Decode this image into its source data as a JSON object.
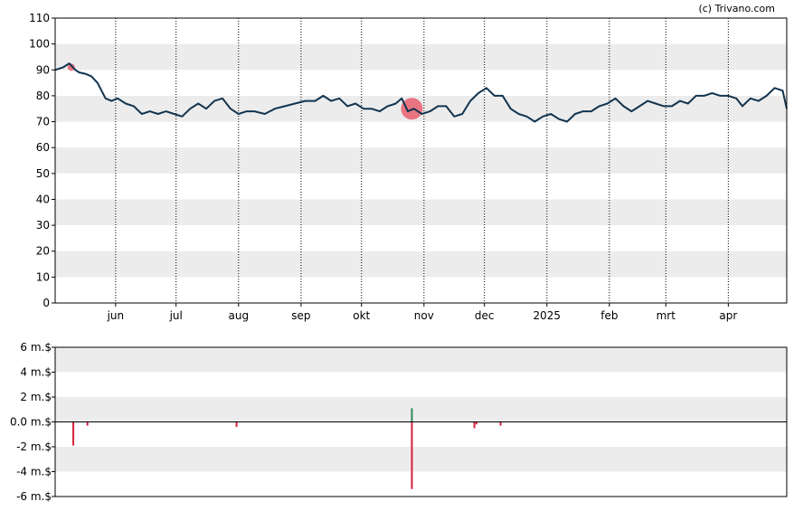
{
  "credit": "(c) Trivano.com",
  "chart_data": [
    {
      "type": "line",
      "title": "",
      "xlabel": "",
      "ylabel": "",
      "ylim": [
        0,
        110
      ],
      "y_ticks": [
        0,
        10,
        20,
        30,
        40,
        50,
        60,
        70,
        80,
        90,
        100,
        110
      ],
      "x_range": [
        "2024-05-02",
        "2025-04-30"
      ],
      "x_ticks": [
        {
          "label": "jun",
          "date": "2024-06-01"
        },
        {
          "label": "jul",
          "date": "2024-07-01"
        },
        {
          "label": "aug",
          "date": "2024-08-01"
        },
        {
          "label": "sep",
          "date": "2024-09-01"
        },
        {
          "label": "okt",
          "date": "2024-10-01"
        },
        {
          "label": "nov",
          "date": "2024-11-01"
        },
        {
          "label": "dec",
          "date": "2024-12-01"
        },
        {
          "label": "2025",
          "date": "2025-01-01"
        },
        {
          "label": "feb",
          "date": "2025-02-01"
        },
        {
          "label": "mrt",
          "date": "2025-03-01"
        },
        {
          "label": "apr",
          "date": "2025-04-01"
        }
      ],
      "grid": "alternating horizontal bands, dotted vertical month lines",
      "line_color": "#12344f",
      "series": [
        {
          "x": [
            "2024-05-02",
            "2024-05-06",
            "2024-05-09",
            "2024-05-12",
            "2024-05-14",
            "2024-05-17",
            "2024-05-20",
            "2024-05-23",
            "2024-05-27",
            "2024-05-30",
            "2024-06-02",
            "2024-06-06",
            "2024-06-10",
            "2024-06-14",
            "2024-06-18",
            "2024-06-22",
            "2024-06-26",
            "2024-06-30",
            "2024-07-04",
            "2024-07-08",
            "2024-07-12",
            "2024-07-16",
            "2024-07-20",
            "2024-07-24",
            "2024-07-28",
            "2024-08-01",
            "2024-08-05",
            "2024-08-09",
            "2024-08-14",
            "2024-08-19",
            "2024-08-24",
            "2024-08-29",
            "2024-09-03",
            "2024-09-08",
            "2024-09-12",
            "2024-09-16",
            "2024-09-20",
            "2024-09-24",
            "2024-09-28",
            "2024-10-02",
            "2024-10-06",
            "2024-10-10",
            "2024-10-14",
            "2024-10-18",
            "2024-10-21",
            "2024-10-24",
            "2024-10-27",
            "2024-10-31",
            "2024-11-04",
            "2024-11-08",
            "2024-11-12",
            "2024-11-16",
            "2024-11-20",
            "2024-11-24",
            "2024-11-28",
            "2024-12-02",
            "2024-12-06",
            "2024-12-10",
            "2024-12-14",
            "2024-12-18",
            "2024-12-22",
            "2024-12-26",
            "2024-12-30",
            "2025-01-03",
            "2025-01-07",
            "2025-01-11",
            "2025-01-15",
            "2025-01-19",
            "2025-01-23",
            "2025-01-27",
            "2025-01-31",
            "2025-02-04",
            "2025-02-08",
            "2025-02-12",
            "2025-02-16",
            "2025-02-20",
            "2025-02-24",
            "2025-02-28",
            "2025-03-04",
            "2025-03-08",
            "2025-03-12",
            "2025-03-16",
            "2025-03-20",
            "2025-03-24",
            "2025-03-28",
            "2025-04-01",
            "2025-04-05",
            "2025-04-08",
            "2025-04-12",
            "2025-04-16",
            "2025-04-20",
            "2025-04-24",
            "2025-04-28",
            "2025-04-30"
          ],
          "y": [
            90,
            91,
            92.5,
            90,
            89,
            88.5,
            87.5,
            85,
            79,
            78,
            79,
            77,
            76,
            73,
            74,
            73,
            74,
            73,
            72,
            75,
            77,
            75,
            78,
            79,
            75,
            73,
            74,
            74,
            73,
            75,
            76,
            77,
            78,
            78,
            80,
            78,
            79,
            76,
            77,
            75,
            75,
            74,
            76,
            77,
            79,
            74,
            75,
            73,
            74,
            76,
            76,
            72,
            73,
            78,
            81,
            83,
            80,
            80,
            75,
            73,
            72,
            70,
            72,
            73,
            71,
            70,
            73,
            74,
            74,
            76,
            77,
            79,
            76,
            74,
            76,
            78,
            77,
            76,
            76,
            78,
            77,
            80,
            80,
            81,
            80,
            80,
            79,
            76,
            79,
            78,
            80,
            83,
            82,
            75
          ]
        }
      ],
      "markers": [
        {
          "date": "2024-05-10",
          "value": 91,
          "size": "small",
          "color": "#e8606e"
        },
        {
          "date": "2024-10-26",
          "value": 75,
          "size": "large",
          "color": "#e8606e"
        }
      ]
    },
    {
      "type": "bar",
      "title": "",
      "xlabel": "",
      "ylabel": "",
      "ylim": [
        -6,
        6
      ],
      "y_ticks": [
        "6 m.$",
        "4 m.$",
        "2 m.$",
        "0.0 m.$",
        "-2 m.$",
        "-4 m.$",
        "-6 m.$"
      ],
      "y_tick_values": [
        6,
        4,
        2,
        0,
        -2,
        -4,
        -6
      ],
      "x_range": [
        "2024-05-02",
        "2025-04-30"
      ],
      "grid": "alternating horizontal bands",
      "colors": {
        "positive": "#2e8b57",
        "negative": "#d6203a"
      },
      "bars": [
        {
          "date": "2024-05-11",
          "value": -1.9
        },
        {
          "date": "2024-05-18",
          "value": -0.3
        },
        {
          "date": "2024-07-31",
          "value": -0.4
        },
        {
          "date": "2024-10-26",
          "value": 1.1
        },
        {
          "date": "2024-10-26",
          "value": -5.4
        },
        {
          "date": "2024-11-26",
          "value": -0.5
        },
        {
          "date": "2024-11-27",
          "value": -0.2
        },
        {
          "date": "2024-12-09",
          "value": -0.3
        }
      ]
    }
  ]
}
